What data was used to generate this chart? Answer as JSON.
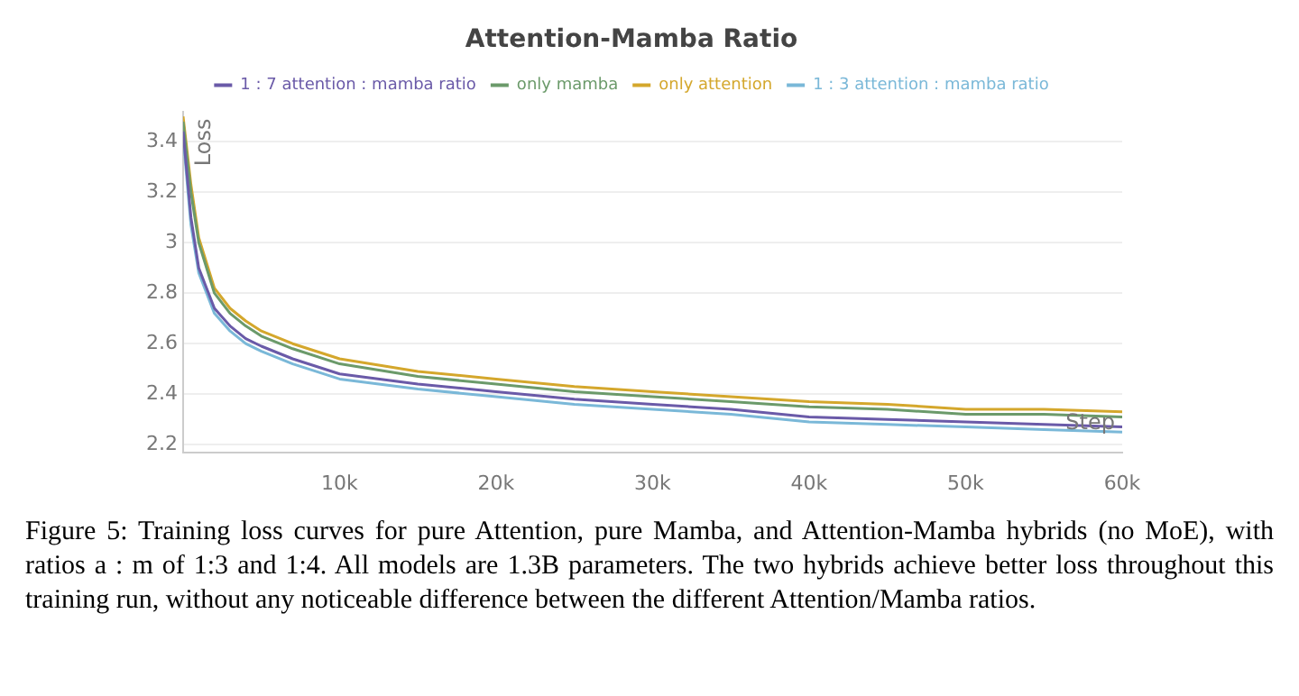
{
  "chart_data": {
    "type": "line",
    "title": "Attention-Mamba Ratio",
    "xlabel": "Step",
    "ylabel": "Loss",
    "x": [
      0,
      500,
      1000,
      2000,
      3000,
      4000,
      5000,
      7000,
      10000,
      15000,
      20000,
      25000,
      30000,
      35000,
      40000,
      45000,
      50000,
      55000,
      60000
    ],
    "series": [
      {
        "name": "1 : 7 attention : mamba ratio",
        "color": "#6a5aa8",
        "values": [
          3.44,
          3.1,
          2.9,
          2.74,
          2.67,
          2.62,
          2.59,
          2.54,
          2.48,
          2.44,
          2.41,
          2.38,
          2.36,
          2.34,
          2.31,
          2.3,
          2.29,
          2.28,
          2.27
        ]
      },
      {
        "name": "only mamba",
        "color": "#6b9a6a",
        "values": [
          3.48,
          3.2,
          3.0,
          2.8,
          2.72,
          2.67,
          2.63,
          2.58,
          2.52,
          2.47,
          2.44,
          2.41,
          2.39,
          2.37,
          2.35,
          2.34,
          2.32,
          2.32,
          2.31
        ]
      },
      {
        "name": "only attention",
        "color": "#d4a72c",
        "values": [
          3.5,
          3.23,
          3.02,
          2.82,
          2.74,
          2.69,
          2.65,
          2.6,
          2.54,
          2.49,
          2.46,
          2.43,
          2.41,
          2.39,
          2.37,
          2.36,
          2.34,
          2.34,
          2.33
        ]
      },
      {
        "name": "1 : 3 attention : mamba ratio",
        "color": "#7ab8d8",
        "values": [
          3.42,
          3.07,
          2.88,
          2.72,
          2.65,
          2.6,
          2.57,
          2.52,
          2.46,
          2.42,
          2.39,
          2.36,
          2.34,
          2.32,
          2.29,
          2.28,
          2.27,
          2.26,
          2.25
        ]
      }
    ],
    "xlim": [
      0,
      60000
    ],
    "ylim": [
      2.17,
      3.52
    ],
    "xticks": [
      {
        "value": 10000,
        "label": "10k"
      },
      {
        "value": 20000,
        "label": "20k"
      },
      {
        "value": 30000,
        "label": "30k"
      },
      {
        "value": 40000,
        "label": "40k"
      },
      {
        "value": 50000,
        "label": "50k"
      },
      {
        "value": 60000,
        "label": "60k"
      }
    ],
    "yticks": [
      2.2,
      2.4,
      2.6,
      2.8,
      3,
      3.2,
      3.4
    ],
    "grid": "y",
    "legend": "top",
    "marker": "none",
    "line_style": "solid",
    "annotations": [
      "Figure 5: Training loss curves for pure Attention, pure Mamba, and Attention-Mamba hybrids (no MoE), with ratios a : m of 1:3 and 1:4. All models are 1.3B parameters. The two hybrids achieve better loss throughout this training run, without any noticeable difference between the different Attention/Mamba ratios."
    ]
  }
}
